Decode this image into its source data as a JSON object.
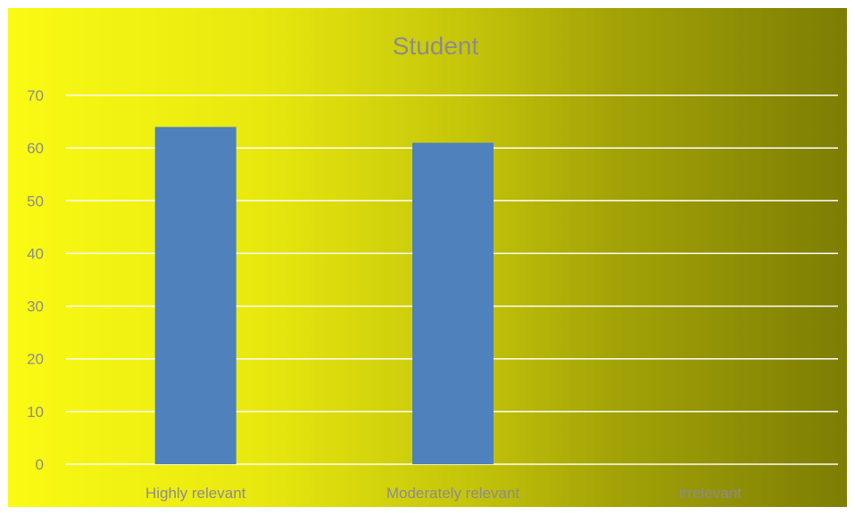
{
  "chart_data": {
    "type": "bar",
    "title": "Student",
    "categories": [
      "Highly relevant",
      "Moderately relevant",
      "irrelevant"
    ],
    "values": [
      64,
      61,
      0
    ],
    "xlabel": "",
    "ylabel": "",
    "ylim": [
      0,
      70
    ],
    "yticks": [
      0,
      10,
      20,
      30,
      40,
      50,
      60,
      70
    ],
    "grid": true,
    "legend": "none",
    "bar_color": "#4f81bd",
    "grid_color": "#ffffff",
    "text_color": "#8c8c8c"
  }
}
